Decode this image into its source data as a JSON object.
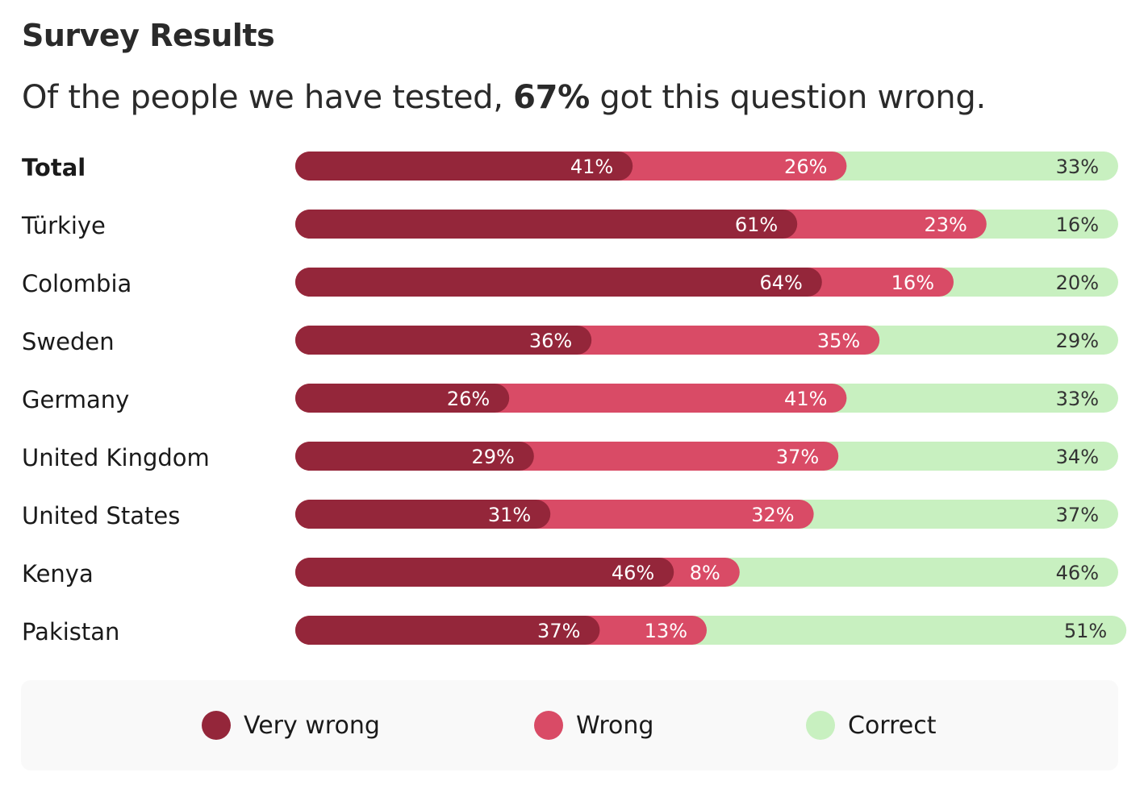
{
  "header": {
    "title": "Survey Results",
    "subtitle_before": "Of the people we have tested, ",
    "subtitle_highlight": "67%",
    "subtitle_after": " got this question wrong."
  },
  "colors": {
    "very_wrong": "#94263a",
    "wrong": "#d94b66",
    "correct": "#c8f0c0",
    "label_light": "#ffffff",
    "label_dark": "#333333"
  },
  "legend": {
    "items": [
      {
        "label": "Very wrong",
        "color": "#94263a"
      },
      {
        "label": "Wrong",
        "color": "#d94b66"
      },
      {
        "label": "Correct",
        "color": "#c8f0c0"
      }
    ]
  },
  "chart_data": {
    "type": "bar",
    "stacked": true,
    "orientation": "horizontal",
    "title": "Survey Results",
    "categories": [
      "Total",
      "Türkiye",
      "Colombia",
      "Sweden",
      "Germany",
      "United Kingdom",
      "United States",
      "Kenya",
      "Pakistan"
    ],
    "series": [
      {
        "name": "Very wrong",
        "values": [
          41,
          61,
          64,
          36,
          26,
          29,
          31,
          46,
          37
        ],
        "labels": [
          "41%",
          "61%",
          "64%",
          "36%",
          "26%",
          "29%",
          "31%",
          "46%",
          "37%"
        ]
      },
      {
        "name": "Wrong",
        "values": [
          26,
          23,
          16,
          35,
          41,
          37,
          32,
          8,
          13
        ],
        "labels": [
          "26%",
          "23%",
          "16%",
          "35%",
          "41%",
          "37%",
          "32%",
          "8%",
          "13%"
        ]
      },
      {
        "name": "Correct",
        "values": [
          33,
          16,
          20,
          29,
          33,
          34,
          37,
          46,
          51
        ],
        "labels": [
          "33%",
          "16%",
          "20%",
          "29%",
          "33%",
          "34%",
          "37%",
          "46%",
          "51%"
        ]
      }
    ],
    "xlim": [
      0,
      100
    ],
    "grid": false,
    "legend_position": "bottom"
  }
}
